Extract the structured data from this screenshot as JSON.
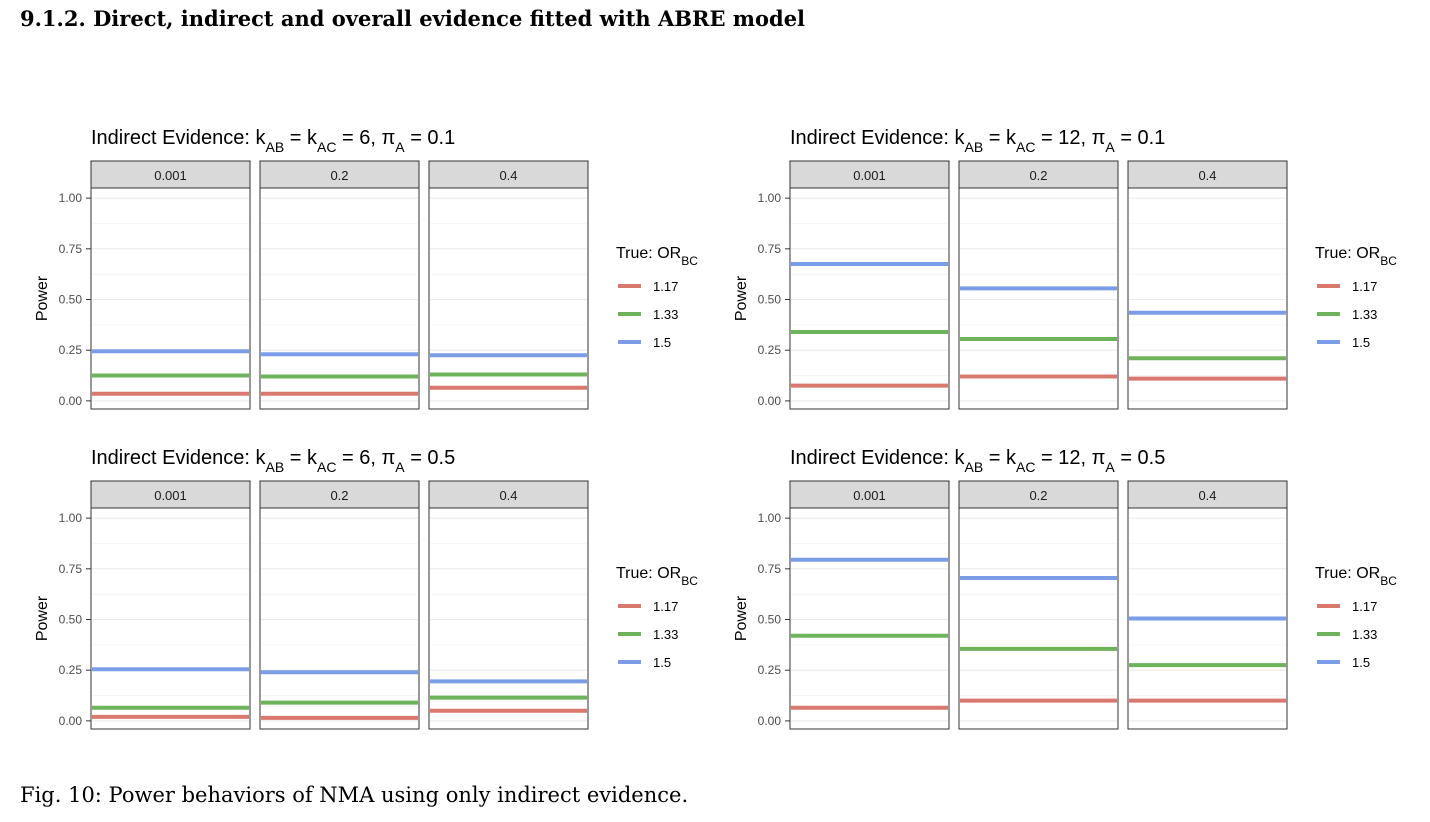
{
  "heading": "9.1.2. Direct, indirect and overall evidence fitted with ABRE model",
  "caption": "Fig. 10: Power behaviors of NMA using only indirect evidence.",
  "colors": {
    "1.17": "#d9796e",
    "1.33": "#6db35a",
    "1.5": "#7b9de8"
  },
  "chart_data": [
    {
      "type": "line",
      "title": {
        "prefix": "Indirect Evidence: k",
        "k1_sub": "AB",
        "eq1": " = k",
        "k2_sub": "AC",
        "k_value": " = 6, π",
        "pi_sub": "A",
        "pi_value": " = 0.1"
      },
      "ylabel": "Power",
      "ylim": [
        -0.04,
        1.05
      ],
      "yticks": [
        "0.00",
        "0.25",
        "0.50",
        "0.75",
        "1.00"
      ],
      "facets": [
        "0.001",
        "0.2",
        "0.4"
      ],
      "legend": {
        "title": "True: OR",
        "title_sub": "BC",
        "position": "right"
      },
      "series": [
        {
          "name": "1.17",
          "values": [
            0.035,
            0.035,
            0.065
          ]
        },
        {
          "name": "1.33",
          "values": [
            0.125,
            0.12,
            0.13
          ]
        },
        {
          "name": "1.5",
          "values": [
            0.245,
            0.23,
            0.225
          ]
        }
      ]
    },
    {
      "type": "line",
      "title": {
        "prefix": "Indirect Evidence: k",
        "k1_sub": "AB",
        "eq1": " = k",
        "k2_sub": "AC",
        "k_value": " = 12, π",
        "pi_sub": "A",
        "pi_value": " = 0.1"
      },
      "ylabel": "Power",
      "ylim": [
        -0.04,
        1.05
      ],
      "yticks": [
        "0.00",
        "0.25",
        "0.50",
        "0.75",
        "1.00"
      ],
      "facets": [
        "0.001",
        "0.2",
        "0.4"
      ],
      "legend": {
        "title": "True: OR",
        "title_sub": "BC",
        "position": "right"
      },
      "series": [
        {
          "name": "1.17",
          "values": [
            0.075,
            0.12,
            0.11
          ]
        },
        {
          "name": "1.33",
          "values": [
            0.34,
            0.305,
            0.21
          ]
        },
        {
          "name": "1.5",
          "values": [
            0.675,
            0.555,
            0.435
          ]
        }
      ]
    },
    {
      "type": "line",
      "title": {
        "prefix": "Indirect Evidence: k",
        "k1_sub": "AB",
        "eq1": " = k",
        "k2_sub": "AC",
        "k_value": " = 6, π",
        "pi_sub": "A",
        "pi_value": " = 0.5"
      },
      "ylabel": "Power",
      "ylim": [
        -0.04,
        1.05
      ],
      "yticks": [
        "0.00",
        "0.25",
        "0.50",
        "0.75",
        "1.00"
      ],
      "facets": [
        "0.001",
        "0.2",
        "0.4"
      ],
      "legend": {
        "title": "True: OR",
        "title_sub": "BC",
        "position": "right"
      },
      "series": [
        {
          "name": "1.17",
          "values": [
            0.02,
            0.015,
            0.05
          ]
        },
        {
          "name": "1.33",
          "values": [
            0.065,
            0.09,
            0.115
          ]
        },
        {
          "name": "1.5",
          "values": [
            0.255,
            0.24,
            0.195
          ]
        }
      ]
    },
    {
      "type": "line",
      "title": {
        "prefix": "Indirect Evidence: k",
        "k1_sub": "AB",
        "eq1": " = k",
        "k2_sub": "AC",
        "k_value": " = 12, π",
        "pi_sub": "A",
        "pi_value": " = 0.5"
      },
      "ylabel": "Power",
      "ylim": [
        -0.04,
        1.05
      ],
      "yticks": [
        "0.00",
        "0.25",
        "0.50",
        "0.75",
        "1.00"
      ],
      "facets": [
        "0.001",
        "0.2",
        "0.4"
      ],
      "legend": {
        "title": "True: OR",
        "title_sub": "BC",
        "position": "right"
      },
      "series": [
        {
          "name": "1.17",
          "values": [
            0.065,
            0.1,
            0.1
          ]
        },
        {
          "name": "1.33",
          "values": [
            0.42,
            0.355,
            0.275
          ]
        },
        {
          "name": "1.5",
          "values": [
            0.795,
            0.705,
            0.505
          ]
        }
      ]
    }
  ]
}
